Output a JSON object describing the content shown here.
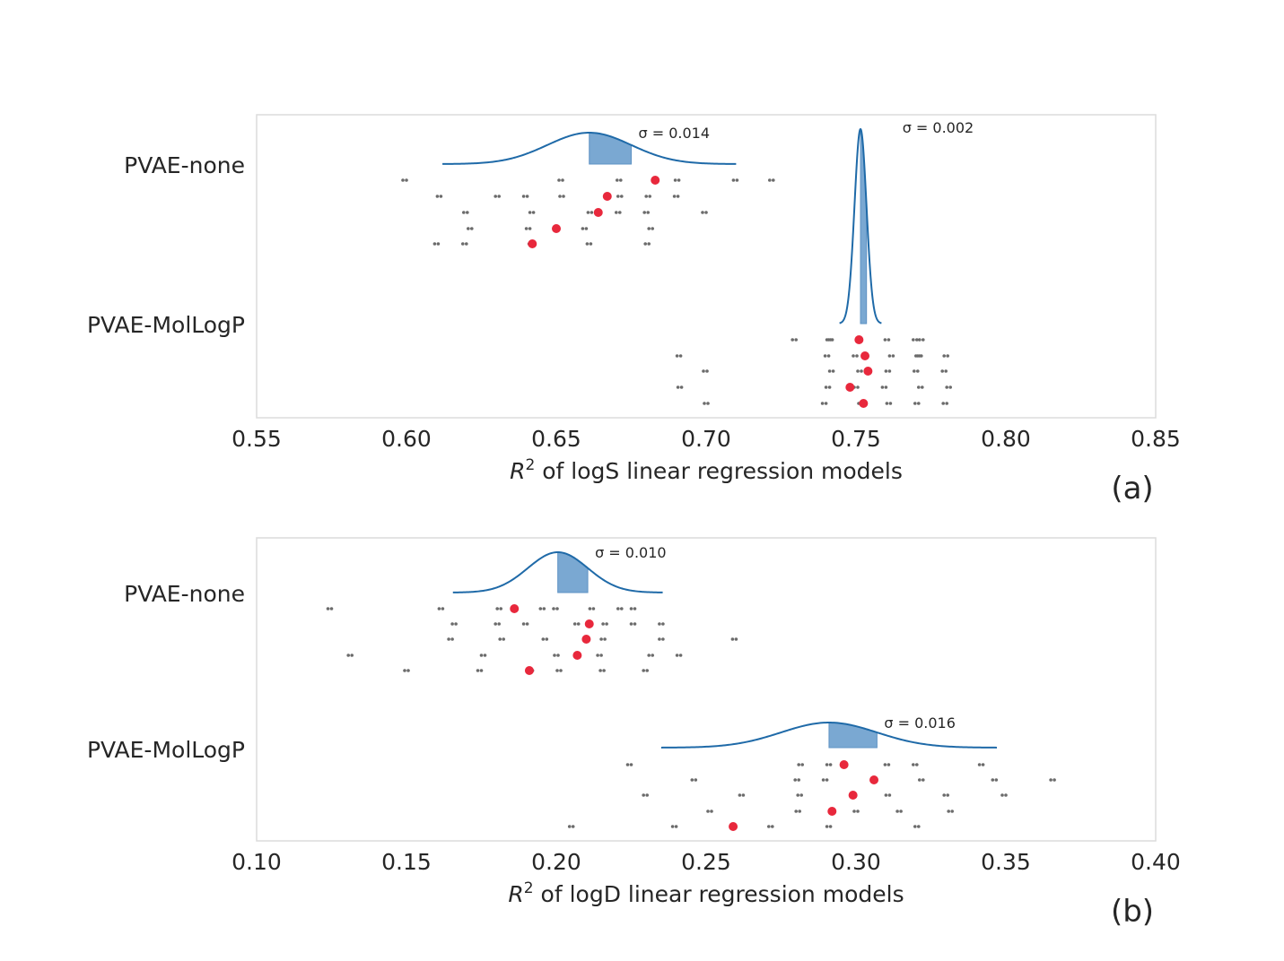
{
  "chart_data": [
    {
      "type": "scatter",
      "panel_label": "(a)",
      "xlabel_var": "R",
      "xlabel_sup": "2",
      "xlabel_rest": " of logS linear regression models",
      "xlim": [
        0.55,
        0.85
      ],
      "xticks": [
        "0.55",
        "0.60",
        "0.65",
        "0.70",
        "0.75",
        "0.80",
        "0.85"
      ],
      "grid": false,
      "categories": [
        "PVAE-none",
        "PVAE-MolLogP"
      ],
      "series": [
        {
          "name": "PVAE-none",
          "distribution": {
            "mean": 0.661,
            "sigma": 0.014,
            "label": "σ = 0.014"
          },
          "means": [
            0.683,
            0.667,
            0.664,
            0.65,
            0.642
          ],
          "rows": [
            [
              0.6,
              0.65,
              0.67,
              0.69,
              0.71,
              0.72
            ],
            [
              0.61,
              0.63,
              0.64,
              0.65,
              0.67,
              0.68,
              0.69
            ],
            [
              0.62,
              0.64,
              0.66,
              0.67,
              0.68,
              0.7
            ],
            [
              0.62,
              0.64,
              0.65,
              0.66,
              0.68
            ],
            [
              0.61,
              0.62,
              0.64,
              0.66,
              0.68
            ]
          ]
        },
        {
          "name": "PVAE-MolLogP",
          "distribution": {
            "mean": 0.7515,
            "sigma": 0.002,
            "label": "σ = 0.002"
          },
          "means": [
            0.751,
            0.753,
            0.754,
            0.748,
            0.7525
          ],
          "rows": [
            [
              0.73,
              0.74,
              0.74,
              0.76,
              0.77,
              0.77
            ],
            [
              0.69,
              0.74,
              0.75,
              0.76,
              0.77,
              0.77,
              0.78
            ],
            [
              0.7,
              0.74,
              0.75,
              0.76,
              0.77,
              0.78
            ],
            [
              0.69,
              0.74,
              0.75,
              0.76,
              0.77,
              0.78
            ],
            [
              0.7,
              0.74,
              0.75,
              0.76,
              0.77,
              0.78
            ]
          ]
        }
      ]
    },
    {
      "type": "scatter",
      "panel_label": "(b)",
      "xlabel_var": "R",
      "xlabel_sup": "2",
      "xlabel_rest": " of logD linear regression models",
      "xlim": [
        0.1,
        0.4
      ],
      "xticks": [
        "0.10",
        "0.15",
        "0.20",
        "0.25",
        "0.30",
        "0.35",
        "0.40"
      ],
      "grid": false,
      "categories": [
        "PVAE-none",
        "PVAE-MolLogP"
      ],
      "series": [
        {
          "name": "PVAE-none",
          "distribution": {
            "mean": 0.2005,
            "sigma": 0.01,
            "label": "σ = 0.010"
          },
          "means": [
            0.186,
            0.211,
            0.21,
            0.207,
            0.191
          ],
          "rows": [
            [
              0.125,
              0.16,
              0.18,
              0.195,
              0.2,
              0.21,
              0.22,
              0.225
            ],
            [
              0.165,
              0.18,
              0.19,
              0.205,
              0.215,
              0.225,
              0.235
            ],
            [
              0.165,
              0.18,
              0.195,
              0.215,
              0.235,
              0.26
            ],
            [
              0.13,
              0.175,
              0.2,
              0.215,
              0.23,
              0.24
            ],
            [
              0.15,
              0.175,
              0.19,
              0.2,
              0.215,
              0.23
            ]
          ]
        },
        {
          "name": "PVAE-MolLogP",
          "distribution": {
            "mean": 0.291,
            "sigma": 0.016,
            "label": "σ = 0.016"
          },
          "means": [
            0.296,
            0.306,
            0.299,
            0.292,
            0.259
          ],
          "rows": [
            [
              0.225,
              0.28,
              0.29,
              0.31,
              0.32,
              0.34
            ],
            [
              0.245,
              0.28,
              0.29,
              0.32,
              0.345,
              0.365
            ],
            [
              0.23,
              0.26,
              0.28,
              0.31,
              0.33,
              0.35
            ],
            [
              0.25,
              0.28,
              0.3,
              0.315,
              0.33
            ],
            [
              0.205,
              0.24,
              0.27,
              0.29,
              0.32
            ]
          ]
        }
      ]
    }
  ]
}
